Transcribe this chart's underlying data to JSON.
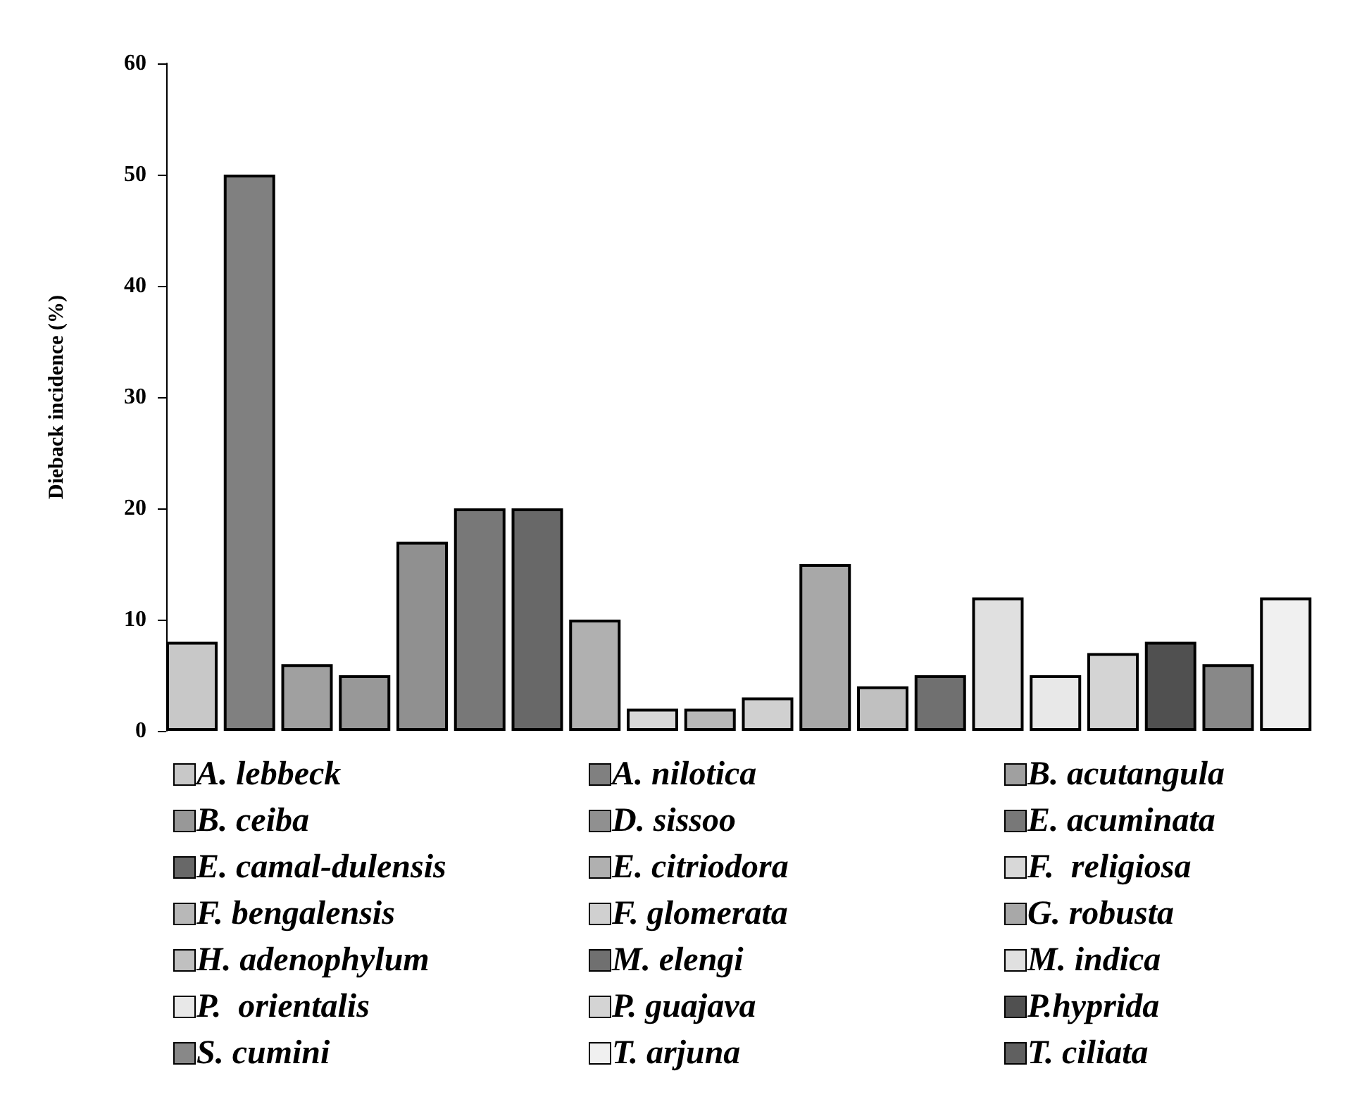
{
  "chart_data": {
    "type": "bar",
    "ylabel": "Dieback incidence (%)",
    "categories": [
      null
    ],
    "series": [
      {
        "name": "A. lebbeck",
        "color": "#c8c8c8",
        "values": [
          8
        ]
      },
      {
        "name": "A. nilotica",
        "color": "#808080",
        "values": [
          50
        ]
      },
      {
        "name": "B. acutangula",
        "color": "#a0a0a0",
        "values": [
          6
        ]
      },
      {
        "name": "B. ceiba",
        "color": "#989898",
        "values": [
          5
        ]
      },
      {
        "name": "D. sissoo",
        "color": "#909090",
        "values": [
          17
        ]
      },
      {
        "name": "E. acuminata",
        "color": "#787878",
        "values": [
          20
        ]
      },
      {
        "name": "E. camal-dulensis",
        "color": "#686868",
        "values": [
          20
        ]
      },
      {
        "name": "E. citriodora",
        "color": "#b0b0b0",
        "values": [
          10
        ]
      },
      {
        "name": "F.  religiosa",
        "color": "#d8d8d8",
        "values": [
          2
        ]
      },
      {
        "name": "F. bengalensis",
        "color": "#b8b8b8",
        "values": [
          2
        ]
      },
      {
        "name": "F. glomerata",
        "color": "#d0d0d0",
        "values": [
          3
        ]
      },
      {
        "name": "G. robusta",
        "color": "#a8a8a8",
        "values": [
          15
        ]
      },
      {
        "name": "H. adenophylum",
        "color": "#c0c0c0",
        "values": [
          4
        ]
      },
      {
        "name": "M. elengi",
        "color": "#707070",
        "values": [
          5
        ]
      },
      {
        "name": "M. indica",
        "color": "#e0e0e0",
        "values": [
          12
        ]
      },
      {
        "name": "P.  orientalis",
        "color": "#e8e8e8",
        "values": [
          5
        ]
      },
      {
        "name": "P. guajava",
        "color": "#d4d4d4",
        "values": [
          7
        ]
      },
      {
        "name": "P.hyprida",
        "color": "#505050",
        "values": [
          8
        ]
      },
      {
        "name": "S. cumini",
        "color": "#888888",
        "values": [
          6
        ]
      },
      {
        "name": "T. arjuna",
        "color": "#f0f0f0",
        "values": [
          12
        ]
      },
      {
        "name": "T. ciliata",
        "color": "#606060",
        "values": [
          null
        ]
      }
    ],
    "ylim": [
      0,
      60
    ],
    "yticks": [
      0,
      10,
      20,
      30,
      40,
      50,
      60
    ],
    "grid": false,
    "legend": "bottom"
  }
}
